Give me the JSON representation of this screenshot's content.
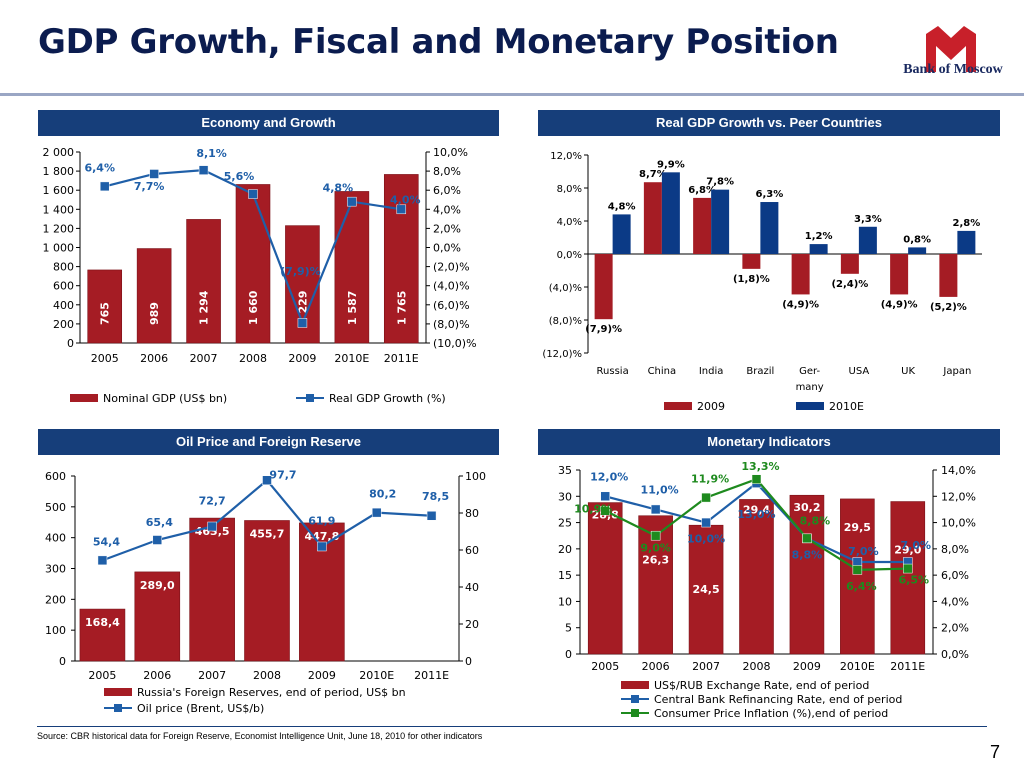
{
  "header": {
    "title": "GDP Growth, Fiscal and Monetary Position",
    "logo_text": "Bank of Moscow"
  },
  "panels": {
    "economy": "Economy and Growth",
    "peers": "Real GDP Growth vs. Peer Countries",
    "oil": "Oil Price and Foreign Reserve",
    "monetary": "Monetary Indicators"
  },
  "footer": {
    "source": "Source: CBR historical data for Foreign Reserve, Economist Intelligence Unit, June 18, 2010 for other indicators",
    "page_number": "7"
  },
  "colors": {
    "bar_red": "#a51c24",
    "bar_blue": "#0b3a86",
    "line_blue": "#1f5fa8",
    "line_green": "#1e8a1e",
    "navy": "#163e7a"
  },
  "chart_data": [
    {
      "id": "economy",
      "type": "bar",
      "categories": [
        "2005",
        "2006",
        "2007",
        "2008",
        "2009",
        "2010E",
        "2011E"
      ],
      "ylim": [
        0,
        2000
      ],
      "yticks": [
        "0",
        "200",
        "400",
        "600",
        "800",
        "1 000",
        "1 200",
        "1 400",
        "1 600",
        "1 800",
        "2 000"
      ],
      "y2lim": [
        -10,
        10
      ],
      "y2ticks": [
        "(10,0)%",
        "(8,0)%",
        "(6,0)%",
        "(4,0)%",
        "(2,0)%",
        "0,0%",
        "2,0%",
        "4,0%",
        "6,0%",
        "8,0%",
        "10,0%"
      ],
      "series": [
        {
          "name": "Nominal GDP (US$ bn)",
          "type": "bar",
          "axis": "left",
          "values": [
            765,
            989,
            1294,
            1660,
            1229,
            1587,
            1765
          ],
          "labels": [
            "765",
            "989",
            "1 294",
            "1 660",
            "1 229",
            "1 587",
            "1 765"
          ]
        },
        {
          "name": "Real GDP Growth (%)",
          "type": "line",
          "axis": "right",
          "values": [
            6.4,
            7.7,
            8.1,
            5.6,
            -7.9,
            4.8,
            4.0
          ],
          "labels": [
            "6,4%",
            "7,7%",
            "8,1%",
            "5,6%",
            "(7,9)%",
            "4,8%",
            "4,0%"
          ]
        }
      ]
    },
    {
      "id": "peers",
      "type": "bar",
      "categories": [
        "Russia",
        "China",
        "India",
        "Brazil",
        "Ger-many",
        "USA",
        "UK",
        "Japan"
      ],
      "ylim": [
        -12,
        12
      ],
      "yticks": [
        "(12,0)%",
        "(8,0)%",
        "(4,0)%",
        "0,0%",
        "4,0%",
        "8,0%",
        "12,0%"
      ],
      "series": [
        {
          "name": "2009",
          "values": [
            -7.9,
            8.7,
            6.8,
            -1.8,
            -4.9,
            -2.4,
            -4.9,
            -5.2
          ],
          "labels": [
            "(7,9)%",
            "8,7%",
            "6,8%",
            "(1,8)%",
            "(4,9)%",
            "(2,4)%",
            "(4,9)%",
            "(5,2)%"
          ]
        },
        {
          "name": "2010E",
          "values": [
            4.8,
            9.9,
            7.8,
            6.3,
            1.2,
            3.3,
            0.8,
            2.8
          ],
          "labels": [
            "4,8%",
            "9,9%",
            "7,8%",
            "6,3%",
            "1,2%",
            "3,3%",
            "0,8%",
            "2,8%"
          ]
        }
      ]
    },
    {
      "id": "oil",
      "type": "bar",
      "categories": [
        "2005",
        "2006",
        "2007",
        "2008",
        "2009",
        "2010E",
        "2011E"
      ],
      "ylim": [
        0,
        600
      ],
      "yticks": [
        "0",
        "100",
        "200",
        "300",
        "400",
        "500",
        "600"
      ],
      "y2lim": [
        0,
        100
      ],
      "y2ticks": [
        "0",
        "20",
        "40",
        "60",
        "80",
        "100"
      ],
      "series": [
        {
          "name": "Russia's Foreign Reserves, end of period, US$ bn",
          "type": "bar",
          "axis": "left",
          "values": [
            168.4,
            289.0,
            463.5,
            455.7,
            447.8,
            null,
            null
          ],
          "labels": [
            "168,4",
            "289,0",
            "463,5",
            "455,7",
            "447,8",
            "",
            ""
          ]
        },
        {
          "name": "Oil price (Brent, US$/b)",
          "type": "line",
          "axis": "right",
          "values": [
            54.4,
            65.4,
            72.7,
            97.7,
            61.9,
            80.2,
            78.5
          ],
          "labels": [
            "54,4",
            "65,4",
            "72,7",
            "97,7",
            "61,9",
            "80,2",
            "78,5"
          ]
        }
      ]
    },
    {
      "id": "monetary",
      "type": "bar",
      "categories": [
        "2005",
        "2006",
        "2007",
        "2008",
        "2009",
        "2010E",
        "2011E"
      ],
      "ylim": [
        0,
        35
      ],
      "yticks": [
        "0",
        "5",
        "10",
        "15",
        "20",
        "25",
        "30",
        "35"
      ],
      "y2lim": [
        0,
        14
      ],
      "y2ticks": [
        "0,0%",
        "2,0%",
        "4,0%",
        "6,0%",
        "8,0%",
        "10,0%",
        "12,0%",
        "14,0%"
      ],
      "series": [
        {
          "name": "US$/RUB Exchange Rate, end of period",
          "type": "bar",
          "axis": "left",
          "values": [
            28.8,
            26.3,
            24.5,
            29.4,
            30.2,
            29.5,
            29.0
          ],
          "labels": [
            "28,8",
            "26,3",
            "24,5",
            "29,4",
            "30,2",
            "29,5",
            "29,0"
          ]
        },
        {
          "name": "Central Bank Refinancing Rate, end of period",
          "type": "line",
          "axis": "right",
          "values": [
            12.0,
            11.0,
            10.0,
            13.0,
            8.8,
            7.0,
            7.0
          ],
          "labels": [
            "12,0%",
            "11,0%",
            "10,0%",
            "13,0%",
            "8,8%",
            "7,0%",
            "7,0%"
          ]
        },
        {
          "name": "Consumer Price Inflation (%),end of period",
          "type": "line",
          "axis": "right",
          "values": [
            10.9,
            9.0,
            11.9,
            13.3,
            8.8,
            6.4,
            6.5
          ],
          "labels": [
            "10,9%",
            "9,0%",
            "11,9%",
            "13,3%",
            "8,8%",
            "6,4%",
            "6,5%"
          ]
        }
      ]
    }
  ]
}
